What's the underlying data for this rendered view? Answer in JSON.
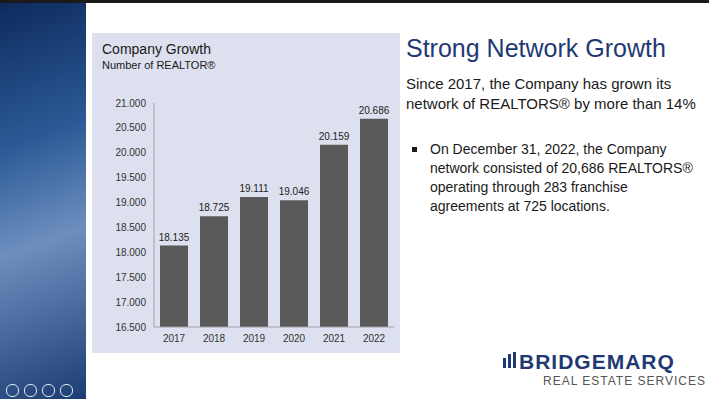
{
  "chart_data": {
    "type": "bar",
    "title": "Company Growth",
    "subtitle": "Number of REALTOR®",
    "categories": [
      "2017",
      "2018",
      "2019",
      "2020",
      "2021",
      "2022"
    ],
    "values": [
      18135,
      18725,
      19111,
      19046,
      20159,
      20686
    ],
    "value_labels": [
      "18.135",
      "18.725",
      "19.111",
      "19.046",
      "20.159",
      "20.686"
    ],
    "color": "#595959",
    "ylim": [
      16500,
      21000
    ],
    "yticks": [
      {
        "value": 16500,
        "label": "16.500"
      },
      {
        "value": 17000,
        "label": "17.000"
      },
      {
        "value": 17500,
        "label": "17.500"
      },
      {
        "value": 18000,
        "label": "18.000"
      },
      {
        "value": 18500,
        "label": "18.500"
      },
      {
        "value": 19000,
        "label": "19.000"
      },
      {
        "value": 19500,
        "label": "19.500"
      },
      {
        "value": 20000,
        "label": "20.000"
      },
      {
        "value": 20500,
        "label": "20.500"
      },
      {
        "value": 21000,
        "label": "21.000"
      }
    ],
    "grid": false,
    "data_labels": true
  },
  "slide": {
    "heading": "Strong Network Growth",
    "intro": "Since 2017, the Company has grown its network of REALTORS® by more than 14%",
    "bullets": [
      "On December 31, 2022, the Company network consisted of 20,686 REALTORS® operating through 283 franchise agreements at 725 locations."
    ],
    "logo": {
      "name": "BRIDGEMARQ",
      "tagline": "REAL ESTATE SERVICES"
    }
  }
}
